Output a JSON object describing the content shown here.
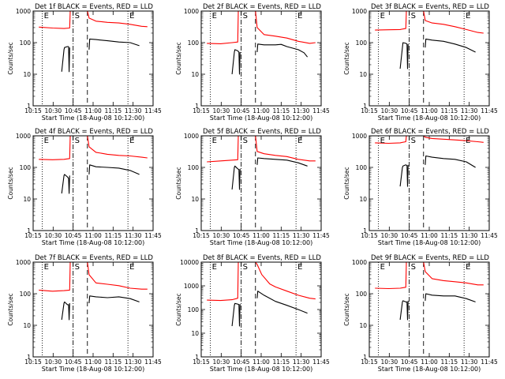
{
  "chart_data": [
    {
      "type": "line",
      "title": "Det 1f BLACK = Events, RED = LLD",
      "xlabel": "Start Time (18-Aug-08 10:12:00)",
      "ylabel": "Counts/sec",
      "ylog": true,
      "ylim": [
        1,
        1000
      ],
      "x_ticks": [
        "10:15",
        "10:30",
        "10:45",
        "11:00",
        "11:15",
        "11:30",
        "11:45"
      ],
      "y_ticks": [
        "1",
        "10",
        "100",
        "1000"
      ],
      "markers": [
        {
          "label": "E",
          "x": 3.0,
          "style": "dotted"
        },
        {
          "label": "S",
          "x": 30.0,
          "style": "dashdot"
        },
        {
          "label": "",
          "x": 42.5,
          "style": "dashed"
        },
        {
          "label": "E",
          "x": 78.0,
          "style": "dotted"
        }
      ],
      "series": [
        {
          "color": "#ff0000",
          "x": [
            0,
            12,
            22,
            27,
            27.5,
            42.5,
            44,
            50,
            60,
            70,
            80,
            90,
            95
          ],
          "y": [
            310,
            290,
            280,
            290,
            1000,
            1000,
            600,
            480,
            440,
            420,
            380,
            330,
            320
          ]
        },
        {
          "color": "#000000",
          "x": [
            20,
            22,
            22.5,
            25,
            26,
            26.5,
            27
          ],
          "y": [
            12,
            60,
            70,
            75,
            75,
            12,
            70
          ]
        },
        {
          "color": "#000000",
          "x": [
            44,
            44.5,
            50,
            60,
            70,
            80,
            88
          ],
          "y": [
            60,
            130,
            125,
            115,
            105,
            100,
            80
          ]
        }
      ]
    },
    {
      "type": "line",
      "title": "Det 2f BLACK = Events, RED = LLD",
      "xlabel": "Start Time (18-Aug-08 10:12:00)",
      "ylabel": "Counts/sec",
      "ylog": true,
      "ylim": [
        1,
        1000
      ],
      "x_ticks": [
        "10:15",
        "10:30",
        "10:45",
        "11:00",
        "11:15",
        "11:30",
        "11:45"
      ],
      "y_ticks": [
        "1",
        "10",
        "100",
        "1000"
      ],
      "markers": [
        {
          "label": "E",
          "x": 3.0,
          "style": "dotted"
        },
        {
          "label": "S",
          "x": 30.0,
          "style": "dashdot"
        },
        {
          "label": "",
          "x": 42.5,
          "style": "dashed"
        },
        {
          "label": "E",
          "x": 78.0,
          "style": "dotted"
        }
      ],
      "series": [
        {
          "color": "#ff0000",
          "x": [
            0,
            12,
            22,
            27,
            27.5,
            42.5,
            44,
            50,
            60,
            70,
            80,
            90,
            95
          ],
          "y": [
            95,
            92,
            100,
            105,
            1000,
            1000,
            300,
            180,
            160,
            140,
            110,
            95,
            100
          ]
        },
        {
          "color": "#000000",
          "x": [
            22,
            24,
            24.5,
            27,
            28,
            28.5,
            29
          ],
          "y": [
            10,
            50,
            60,
            55,
            50,
            10,
            50
          ]
        },
        {
          "color": "#000000",
          "x": [
            44,
            44.5,
            50,
            60,
            65,
            70,
            80,
            85,
            88
          ],
          "y": [
            50,
            90,
            85,
            85,
            88,
            75,
            60,
            48,
            35
          ]
        }
      ]
    },
    {
      "type": "line",
      "title": "Det 3f BLACK = Events, RED = LLD",
      "xlabel": "Start Time (18-Aug-08 10:12:00)",
      "ylabel": "Counts/sec",
      "ylog": true,
      "ylim": [
        1,
        1000
      ],
      "x_ticks": [
        "10:15",
        "10:30",
        "10:45",
        "11:00",
        "11:15",
        "11:30",
        "11:45"
      ],
      "y_ticks": [
        "1",
        "10",
        "100",
        "1000"
      ],
      "markers": [
        {
          "label": "E",
          "x": 3.0,
          "style": "dotted"
        },
        {
          "label": "S",
          "x": 30.0,
          "style": "dashdot"
        },
        {
          "label": "",
          "x": 42.5,
          "style": "dashed"
        },
        {
          "label": "E",
          "x": 78.0,
          "style": "dotted"
        }
      ],
      "series": [
        {
          "color": "#ff0000",
          "x": [
            0,
            12,
            22,
            27,
            27.5,
            42.5,
            44,
            50,
            60,
            70,
            80,
            90,
            95
          ],
          "y": [
            250,
            255,
            260,
            280,
            1000,
            1000,
            500,
            420,
            380,
            320,
            260,
            210,
            200
          ]
        },
        {
          "color": "#000000",
          "x": [
            22,
            24,
            24.5,
            27,
            28,
            28.5,
            29
          ],
          "y": [
            15,
            70,
            100,
            95,
            90,
            15,
            90
          ]
        },
        {
          "color": "#000000",
          "x": [
            44,
            44.5,
            50,
            60,
            70,
            80,
            88
          ],
          "y": [
            70,
            130,
            120,
            110,
            90,
            70,
            50
          ]
        }
      ]
    },
    {
      "type": "line",
      "title": "Det 4f BLACK = Events, RED = LLD",
      "xlabel": "Start Time (18-Aug-08 10:12:00)",
      "ylabel": "Counts/sec",
      "ylog": true,
      "ylim": [
        1,
        1000
      ],
      "x_ticks": [
        "10:15",
        "10:30",
        "10:45",
        "11:00",
        "11:15",
        "11:30",
        "11:45"
      ],
      "y_ticks": [
        "1",
        "10",
        "100",
        "1000"
      ],
      "markers": [
        {
          "label": "E",
          "x": 3.0,
          "style": "dotted"
        },
        {
          "label": "S",
          "x": 30.0,
          "style": "dashdot"
        },
        {
          "label": "",
          "x": 42.5,
          "style": "dashed"
        },
        {
          "label": "E",
          "x": 78.0,
          "style": "dotted"
        }
      ],
      "series": [
        {
          "color": "#ff0000",
          "x": [
            0,
            12,
            22,
            27,
            27.5,
            42.5,
            44,
            50,
            60,
            70,
            80,
            90,
            95
          ],
          "y": [
            180,
            175,
            180,
            190,
            1000,
            1000,
            450,
            300,
            260,
            240,
            230,
            210,
            200
          ]
        },
        {
          "color": "#000000",
          "x": [
            20,
            22,
            22.5,
            25,
            26,
            26.5,
            27
          ],
          "y": [
            15,
            55,
            60,
            50,
            45,
            15,
            55
          ]
        },
        {
          "color": "#000000",
          "x": [
            44,
            44.5,
            50,
            60,
            70,
            80,
            88
          ],
          "y": [
            60,
            120,
            105,
            100,
            95,
            80,
            60
          ]
        }
      ]
    },
    {
      "type": "line",
      "title": "Det 5f BLACK = Events, RED = LLD",
      "xlabel": "Start Time (18-Aug-08 10:12:00)",
      "ylabel": "Counts/sec",
      "ylog": true,
      "ylim": [
        1,
        1000
      ],
      "x_ticks": [
        "10:15",
        "10:30",
        "10:45",
        "11:00",
        "11:15",
        "11:30",
        "11:45"
      ],
      "y_ticks": [
        "1",
        "10",
        "100",
        "1000"
      ],
      "markers": [
        {
          "label": "E",
          "x": 3.0,
          "style": "dotted"
        },
        {
          "label": "S",
          "x": 30.0,
          "style": "dashdot"
        },
        {
          "label": "",
          "x": 42.5,
          "style": "dashed"
        },
        {
          "label": "E",
          "x": 78.0,
          "style": "dotted"
        }
      ],
      "series": [
        {
          "color": "#ff0000",
          "x": [
            0,
            12,
            22,
            27,
            27.5,
            42.5,
            44,
            50,
            60,
            70,
            80,
            90,
            95
          ],
          "y": [
            150,
            160,
            170,
            175,
            1000,
            1000,
            320,
            270,
            240,
            220,
            180,
            160,
            160
          ]
        },
        {
          "color": "#000000",
          "x": [
            22,
            24,
            24.5,
            27,
            28,
            28.5,
            29
          ],
          "y": [
            20,
            100,
            110,
            90,
            85,
            20,
            90
          ]
        },
        {
          "color": "#000000",
          "x": [
            44,
            44.5,
            50,
            60,
            70,
            80,
            88
          ],
          "y": [
            120,
            200,
            190,
            180,
            170,
            140,
            110
          ]
        }
      ]
    },
    {
      "type": "line",
      "title": "Det 6f BLACK = Events, RED = LLD",
      "xlabel": "Start Time (18-Aug-08 10:12:00)",
      "ylabel": "Counts/sec",
      "ylog": true,
      "ylim": [
        1,
        1000
      ],
      "x_ticks": [
        "10:15",
        "10:30",
        "10:45",
        "11:00",
        "11:15",
        "11:30",
        "11:45"
      ],
      "y_ticks": [
        "1",
        "10",
        "100",
        "1000"
      ],
      "markers": [
        {
          "label": "E",
          "x": 3.0,
          "style": "dotted"
        },
        {
          "label": "S",
          "x": 30.0,
          "style": "dashdot"
        },
        {
          "label": "",
          "x": 42.5,
          "style": "dashed"
        },
        {
          "label": "E",
          "x": 78.0,
          "style": "dotted"
        }
      ],
      "series": [
        {
          "color": "#ff0000",
          "x": [
            0,
            12,
            22,
            27,
            27.5,
            42.5,
            44,
            50,
            60,
            70,
            80,
            90,
            95
          ],
          "y": [
            600,
            580,
            600,
            650,
            1000,
            1000,
            900,
            820,
            780,
            740,
            700,
            650,
            620
          ]
        },
        {
          "color": "#000000",
          "x": [
            22,
            24,
            24.5,
            27,
            28,
            28.5,
            29
          ],
          "y": [
            25,
            100,
            110,
            120,
            115,
            25,
            120
          ]
        },
        {
          "color": "#000000",
          "x": [
            44,
            44.5,
            50,
            60,
            70,
            80,
            88
          ],
          "y": [
            120,
            230,
            210,
            190,
            180,
            150,
            100
          ]
        }
      ]
    },
    {
      "type": "line",
      "title": "Det 7f BLACK = Events, RED = LLD",
      "xlabel": "Start Time (18-Aug-08 10:12:00)",
      "ylabel": "Counts/sec",
      "ylog": true,
      "ylim": [
        1,
        1000
      ],
      "x_ticks": [
        "10:15",
        "10:30",
        "10:45",
        "11:00",
        "11:15",
        "11:30",
        "11:45"
      ],
      "y_ticks": [
        "1",
        "10",
        "100",
        "1000"
      ],
      "markers": [
        {
          "label": "E",
          "x": 3.0,
          "style": "dotted"
        },
        {
          "label": "S",
          "x": 30.0,
          "style": "dashdot"
        },
        {
          "label": "",
          "x": 42.5,
          "style": "dashed"
        },
        {
          "label": "E",
          "x": 78.0,
          "style": "dotted"
        }
      ],
      "series": [
        {
          "color": "#ff0000",
          "x": [
            0,
            12,
            22,
            27,
            27.5,
            42.5,
            44,
            50,
            60,
            70,
            80,
            90,
            95
          ],
          "y": [
            130,
            120,
            125,
            130,
            1000,
            1000,
            400,
            220,
            200,
            180,
            150,
            140,
            140
          ]
        },
        {
          "color": "#000000",
          "x": [
            20,
            22,
            22.5,
            25,
            26,
            26.5,
            27
          ],
          "y": [
            15,
            50,
            55,
            45,
            45,
            15,
            50
          ]
        },
        {
          "color": "#000000",
          "x": [
            44,
            44.5,
            50,
            60,
            70,
            80,
            88
          ],
          "y": [
            50,
            85,
            80,
            75,
            80,
            70,
            55
          ]
        }
      ]
    },
    {
      "type": "line",
      "title": "Det 8f BLACK = Events, RED = LLD",
      "xlabel": "Start Time (18-Aug-08 10:12:00)",
      "ylabel": "Counts/sec",
      "ylog": true,
      "ylim": [
        1,
        10000
      ],
      "x_ticks": [
        "10:15",
        "10:30",
        "10:45",
        "11:00",
        "11:15",
        "11:30",
        "11:45"
      ],
      "y_ticks": [
        "1",
        "10",
        "100",
        "1000",
        "10000"
      ],
      "markers": [
        {
          "label": "E",
          "x": 3.0,
          "style": "dotted"
        },
        {
          "label": "S",
          "x": 30.0,
          "style": "dashdot"
        },
        {
          "label": "",
          "x": 42.5,
          "style": "dashed"
        },
        {
          "label": "E",
          "x": 78.0,
          "style": "dotted"
        }
      ],
      "series": [
        {
          "color": "#ff0000",
          "x": [
            0,
            12,
            22,
            27,
            27.5,
            42.5,
            44,
            48,
            55,
            60,
            70,
            80,
            90,
            95
          ],
          "y": [
            250,
            240,
            260,
            300,
            10000,
            10000,
            8000,
            3000,
            1200,
            900,
            600,
            400,
            300,
            280
          ]
        },
        {
          "color": "#000000",
          "x": [
            22,
            24,
            24.5,
            27,
            28,
            28.5,
            29
          ],
          "y": [
            20,
            150,
            180,
            170,
            160,
            20,
            170
          ]
        },
        {
          "color": "#000000",
          "x": [
            44,
            44.5,
            50,
            60,
            70,
            80,
            88
          ],
          "y": [
            300,
            600,
            400,
            220,
            150,
            100,
            70
          ]
        }
      ]
    },
    {
      "type": "line",
      "title": "Det 9f BLACK = Events, RED = LLD",
      "xlabel": "Start Time (18-Aug-08 10:12:00)",
      "ylabel": "Counts/sec",
      "ylog": true,
      "ylim": [
        1,
        1000
      ],
      "x_ticks": [
        "10:15",
        "10:30",
        "10:45",
        "11:00",
        "11:15",
        "11:30",
        "11:45"
      ],
      "y_ticks": [
        "1",
        "10",
        "100",
        "1000"
      ],
      "markers": [
        {
          "label": "E",
          "x": 3.0,
          "style": "dotted"
        },
        {
          "label": "S",
          "x": 30.0,
          "style": "dashdot"
        },
        {
          "label": "",
          "x": 42.5,
          "style": "dashed"
        },
        {
          "label": "E",
          "x": 78.0,
          "style": "dotted"
        }
      ],
      "series": [
        {
          "color": "#ff0000",
          "x": [
            0,
            12,
            22,
            27,
            27.5,
            42.5,
            44,
            50,
            60,
            70,
            80,
            90,
            95
          ],
          "y": [
            150,
            145,
            150,
            160,
            1000,
            1000,
            500,
            300,
            260,
            240,
            220,
            190,
            190
          ]
        },
        {
          "color": "#000000",
          "x": [
            22,
            24,
            24.5,
            27,
            28,
            28.5,
            29
          ],
          "y": [
            15,
            55,
            60,
            55,
            55,
            15,
            60
          ]
        },
        {
          "color": "#000000",
          "x": [
            44,
            44.5,
            50,
            60,
            70,
            80,
            88
          ],
          "y": [
            60,
            100,
            90,
            85,
            85,
            70,
            55
          ]
        }
      ]
    }
  ]
}
